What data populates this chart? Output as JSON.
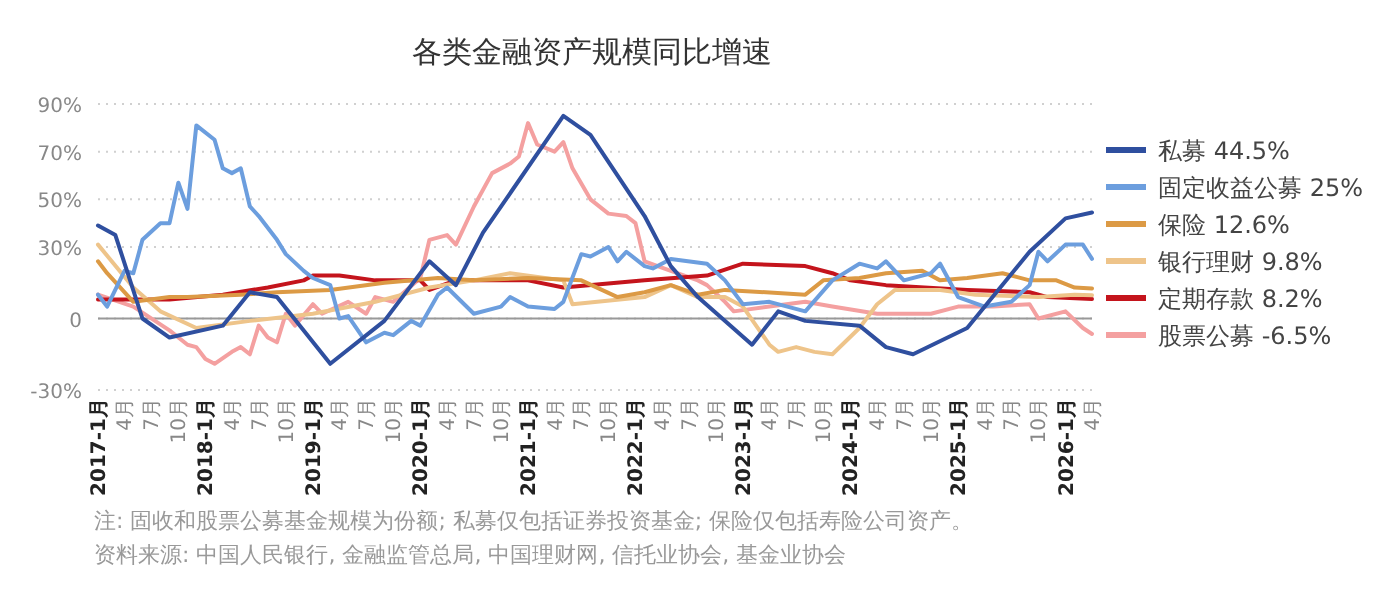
{
  "chart_data": {
    "type": "line",
    "title": "各类金融资产规模同比增速",
    "xlim": [
      "2017-01",
      "2026-04"
    ],
    "ylim": [
      -30,
      90
    ],
    "yticks": [
      {
        "value": -30,
        "label": "-30%"
      },
      0,
      {
        "value": 30,
        "label": "30%"
      },
      {
        "value": 50,
        "label": "50%"
      },
      {
        "value": 70,
        "label": "70%"
      },
      {
        "value": 90,
        "label": "90%"
      }
    ],
    "xticks": [
      {
        "value": "2017-01",
        "label": "2017-1月"
      },
      {
        "value": "2017-04",
        "label": "4月"
      },
      {
        "value": "2017-07",
        "label": "7月"
      },
      {
        "value": "2017-10",
        "label": "10月"
      },
      {
        "value": "2018-01",
        "label": "2018-1月"
      },
      {
        "value": "2018-04",
        "label": "4月"
      },
      {
        "value": "2018-07",
        "label": "7月"
      },
      {
        "value": "2018-10",
        "label": "10月"
      },
      {
        "value": "2019-01",
        "label": "2019-1月"
      },
      {
        "value": "2019-04",
        "label": "4月"
      },
      {
        "value": "2019-07",
        "label": "7月"
      },
      {
        "value": "2019-10",
        "label": "10月"
      },
      {
        "value": "2020-01",
        "label": "2020-1月"
      },
      {
        "value": "2020-04",
        "label": "4月"
      },
      {
        "value": "2020-07",
        "label": "7月"
      },
      {
        "value": "2020-10",
        "label": "10月"
      },
      {
        "value": "2021-01",
        "label": "2021-1月"
      },
      {
        "value": "2021-04",
        "label": "4月"
      },
      {
        "value": "2021-07",
        "label": "7月"
      },
      {
        "value": "2021-10",
        "label": "10月"
      },
      {
        "value": "2022-01",
        "label": "2022-1月"
      },
      {
        "value": "2022-04",
        "label": "4月"
      },
      {
        "value": "2022-07",
        "label": "7月"
      },
      {
        "value": "2022-10",
        "label": "10月"
      },
      {
        "value": "2023-01",
        "label": "2023-1月"
      },
      {
        "value": "2023-04",
        "label": "4月"
      },
      {
        "value": "2023-07",
        "label": "7月"
      },
      {
        "value": "2023-10",
        "label": "10月"
      },
      {
        "value": "2024-01",
        "label": "2024-1月"
      },
      {
        "value": "2024-04",
        "label": "4月"
      },
      {
        "value": "2024-07",
        "label": "7月"
      },
      {
        "value": "2024-10",
        "label": "10月"
      },
      {
        "value": "2025-01",
        "label": "2025-1月"
      },
      {
        "value": "2025-04",
        "label": "4月"
      },
      {
        "value": "2025-07",
        "label": "7月"
      },
      {
        "value": "2025-10",
        "label": "10月"
      },
      {
        "value": "2026-01",
        "label": "2026-1月"
      },
      {
        "value": "2026-04",
        "label": "4月"
      }
    ],
    "grid": "y",
    "legend": "right",
    "annotations": [
      "注: 固收和股票公募基金规模为份额; 私募仅包括证券投资基金; 保险仅包括寿险公司资产。",
      "资料来源: 中国人民银行, 金融监管总局, 中国理财网, 信托业协会, 基金业协会"
    ],
    "series": [
      {
        "name": "私募 44.5%",
        "color": "#2f4f9f",
        "x": [
          "2017-01",
          "2017-03",
          "2017-06",
          "2017-09",
          "2018-03",
          "2018-06",
          "2018-09",
          "2019-03",
          "2019-09",
          "2020-02",
          "2020-05",
          "2020-08",
          "2021-05",
          "2021-08",
          "2022-02",
          "2022-05",
          "2022-08",
          "2023-02",
          "2023-05",
          "2023-08",
          "2024-02",
          "2024-05",
          "2024-08",
          "2025-02",
          "2025-09",
          "2026-01",
          "2026-04"
        ],
        "values": [
          39,
          35,
          0,
          -8,
          -3,
          11,
          9,
          -19,
          -1,
          24,
          14,
          36,
          85,
          77,
          43,
          22,
          9,
          -11,
          3,
          -1,
          -3,
          -12,
          -15,
          -4,
          28,
          42,
          44.5
        ]
      },
      {
        "name": "固定收益公募 25%",
        "color": "#6c9ede",
        "x": [
          "2017-01",
          "2017-02",
          "2017-04",
          "2017-05",
          "2017-06",
          "2017-08",
          "2017-09",
          "2017-10",
          "2017-11",
          "2017-12",
          "2018-02",
          "2018-03",
          "2018-04",
          "2018-05",
          "2018-06",
          "2018-07",
          "2018-09",
          "2018-10",
          "2018-12",
          "2019-01",
          "2019-03",
          "2019-04",
          "2019-05",
          "2019-07",
          "2019-09",
          "2019-10",
          "2019-12",
          "2020-01",
          "2020-03",
          "2020-04",
          "2020-07",
          "2020-10",
          "2020-11",
          "2021-01",
          "2021-04",
          "2021-05",
          "2021-07",
          "2021-08",
          "2021-10",
          "2021-11",
          "2021-12",
          "2022-02",
          "2022-03",
          "2022-05",
          "2022-09",
          "2022-11",
          "2023-01",
          "2023-04",
          "2023-08",
          "2023-11",
          "2024-02",
          "2024-04",
          "2024-05",
          "2024-07",
          "2024-10",
          "2024-11",
          "2025-01",
          "2025-04",
          "2025-07",
          "2025-09",
          "2025-10",
          "2025-11",
          "2026-01",
          "2026-03",
          "2026-04"
        ],
        "values": [
          10,
          5,
          20,
          19,
          33,
          40,
          40,
          57,
          46,
          81,
          75,
          63,
          61,
          63,
          47,
          43,
          33,
          27,
          20,
          17,
          14,
          0,
          1,
          -10,
          -6,
          -7,
          -1,
          -3,
          10,
          13,
          2,
          5,
          9,
          5,
          4,
          7,
          27,
          26,
          30,
          24,
          28,
          22,
          21,
          25,
          23,
          16,
          6,
          7,
          3,
          16,
          23,
          21,
          24,
          16,
          19,
          23,
          9,
          5,
          7,
          14,
          28,
          24,
          31,
          31,
          25
        ]
      },
      {
        "name": "保险 12.6%",
        "color": "#dc9a45",
        "x": [
          "2017-01",
          "2017-02",
          "2017-05",
          "2017-09",
          "2017-11",
          "2018-05",
          "2018-09",
          "2019-03",
          "2019-09",
          "2020-03",
          "2020-07",
          "2021-01",
          "2021-07",
          "2021-11",
          "2022-02",
          "2022-05",
          "2022-08",
          "2022-11",
          "2023-08",
          "2023-10",
          "2024-02",
          "2024-05",
          "2024-09",
          "2024-11",
          "2025-02",
          "2025-06",
          "2025-09",
          "2025-12",
          "2026-02",
          "2026-04"
        ],
        "values": [
          24,
          19,
          7,
          9,
          9,
          10,
          11,
          12,
          15,
          17,
          16,
          17,
          16,
          9,
          11,
          14,
          10,
          12,
          10,
          16,
          17,
          19,
          20,
          16,
          17,
          19,
          16,
          16,
          13,
          12.6
        ]
      },
      {
        "name": "银行理财 9.8%",
        "color": "#eec48a",
        "x": [
          "2017-01",
          "2017-05",
          "2017-08",
          "2017-12",
          "2018-06",
          "2019-01",
          "2019-08",
          "2020-02",
          "2020-07",
          "2020-11",
          "2021-05",
          "2021-06",
          "2022-02",
          "2022-05",
          "2022-08",
          "2022-11",
          "2023-01",
          "2023-04",
          "2023-05",
          "2023-07",
          "2023-09",
          "2023-11",
          "2024-02",
          "2024-04",
          "2024-06",
          "2024-11",
          "2025-03",
          "2025-10",
          "2026-02",
          "2026-04"
        ],
        "values": [
          31,
          13,
          3,
          -4,
          -1,
          2,
          7,
          13,
          16,
          19,
          16,
          6,
          9,
          14,
          9,
          9,
          5,
          -11,
          -14,
          -12,
          -14,
          -15,
          -4,
          6,
          12,
          12,
          10,
          9,
          10,
          9.8
        ]
      },
      {
        "name": "定期存款 8.2%",
        "color": "#c4141c",
        "x": [
          "2017-01",
          "2017-09",
          "2018-03",
          "2018-08",
          "2018-12",
          "2019-01",
          "2019-04",
          "2019-08",
          "2020-01",
          "2020-02",
          "2020-05",
          "2021-01",
          "2021-05",
          "2022-02",
          "2022-09",
          "2023-01",
          "2023-08",
          "2023-11",
          "2024-01",
          "2024-05",
          "2025-02",
          "2025-09",
          "2025-11",
          "2026-04"
        ],
        "values": [
          8,
          8,
          10,
          13,
          16,
          18,
          18,
          16,
          16,
          12,
          16,
          16,
          13,
          16,
          18,
          23,
          22,
          19,
          16,
          14,
          12,
          11,
          9,
          8.2
        ]
      },
      {
        "name": "股票公募 -6.5%",
        "color": "#f4a0a0",
        "x": [
          "2017-01",
          "2017-05",
          "2017-09",
          "2017-11",
          "2017-12",
          "2018-01",
          "2018-02",
          "2018-04",
          "2018-05",
          "2018-06",
          "2018-07",
          "2018-08",
          "2018-09",
          "2018-10",
          "2018-11",
          "2019-01",
          "2019-02",
          "2019-05",
          "2019-07",
          "2019-08",
          "2019-10",
          "2020-01",
          "2020-02",
          "2020-04",
          "2020-05",
          "2020-07",
          "2020-09",
          "2020-11",
          "2020-12",
          "2021-01",
          "2021-02",
          "2021-04",
          "2021-05",
          "2021-06",
          "2021-08",
          "2021-10",
          "2021-12",
          "2022-01",
          "2022-02",
          "2022-05",
          "2022-08",
          "2022-09",
          "2022-11",
          "2022-12",
          "2023-04",
          "2023-08",
          "2023-11",
          "2024-04",
          "2024-10",
          "2025-01",
          "2025-05",
          "2025-09",
          "2025-10",
          "2026-01",
          "2026-03",
          "2026-04"
        ],
        "values": [
          10,
          5,
          -5,
          -11,
          -12,
          -17,
          -19,
          -14,
          -12,
          -15,
          -3,
          -8,
          -10,
          2,
          -3,
          6,
          2,
          7,
          2,
          9,
          7,
          17,
          33,
          35,
          31,
          47,
          61,
          65,
          68,
          82,
          73,
          70,
          74,
          63,
          50,
          44,
          43,
          40,
          24,
          20,
          16,
          14,
          7,
          3,
          5,
          7,
          5,
          2,
          2,
          5,
          5,
          6,
          0,
          3,
          -4,
          -6.5
        ]
      }
    ]
  }
}
